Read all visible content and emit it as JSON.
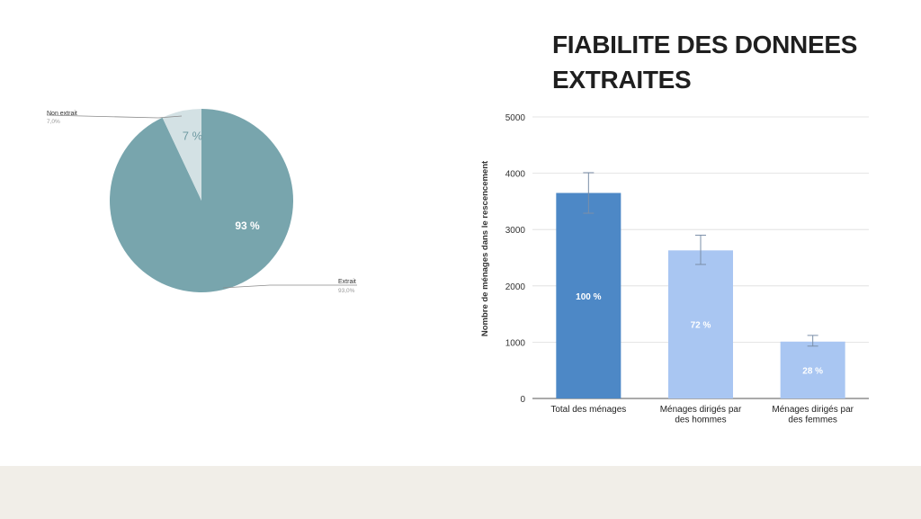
{
  "slide": {
    "title_line1": "FIABILITE DES DONNEES",
    "title_line2": "EXTRAITES"
  },
  "colors": {
    "pie_extrait": "#78a5ad",
    "pie_non_extrait": "#d3e1e4",
    "bar_total": "#4d88c6",
    "bar_other": "#a9c6f2",
    "grid": "#dddddd",
    "footer": "#f1eee8"
  },
  "chart_data": [
    {
      "type": "pie",
      "slices": [
        {
          "label": "Non extrait",
          "value": 7.0,
          "legend_value": "7,0%",
          "inner_label": "7 %"
        },
        {
          "label": "Extrait",
          "value": 93.0,
          "legend_value": "93,0%",
          "inner_label": "93 %"
        }
      ]
    },
    {
      "type": "bar",
      "ylabel": "Nombre de ménages dans le rescencement",
      "ylim": [
        0,
        5000
      ],
      "yticks": [
        0,
        1000,
        2000,
        3000,
        4000,
        5000
      ],
      "grid": true,
      "categories": [
        {
          "lines": [
            "Total des ménages"
          ]
        },
        {
          "lines": [
            "Ménages dirigés par",
            "des hommes"
          ]
        },
        {
          "lines": [
            "Ménages dirigés par",
            "des femmes"
          ]
        }
      ],
      "values": [
        3650,
        2630,
        1010
      ],
      "error_low": [
        3290,
        2380,
        930
      ],
      "error_high": [
        4010,
        2900,
        1120
      ],
      "data_labels": [
        "100 %",
        "72 %",
        "28 %"
      ]
    }
  ]
}
